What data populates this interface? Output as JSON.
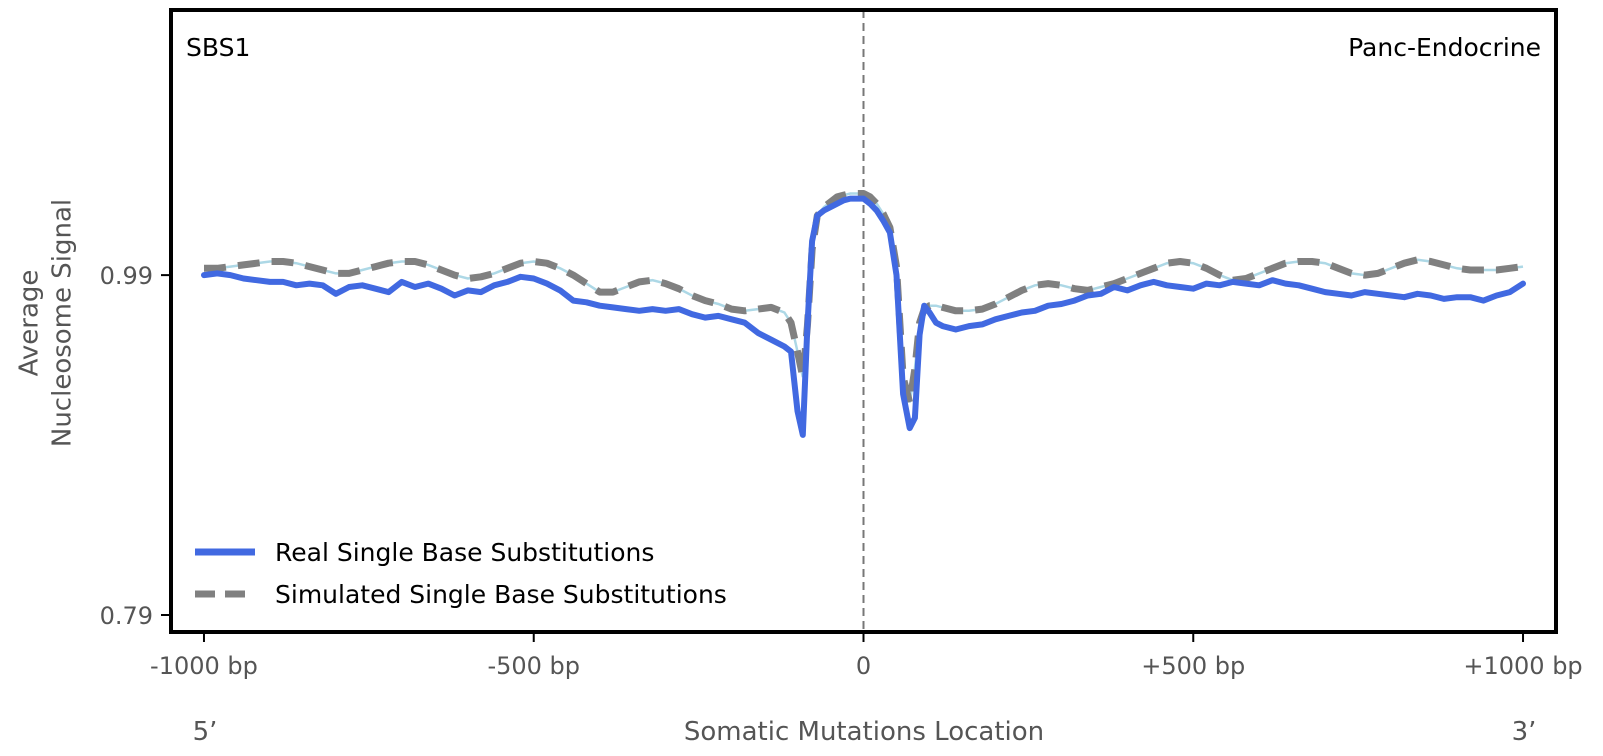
{
  "chart_data": {
    "type": "line",
    "signature_label": "SBS1",
    "tissue_label": "Panc-Endocrine",
    "xlabel": "Somatic Mutations Location",
    "ylabel_line1": "Average",
    "ylabel_line2": "Nucleosome Signal",
    "strand_left": "5’",
    "strand_right": "3’",
    "x_ticks": [
      {
        "value": -1000,
        "label": "-1000 bp"
      },
      {
        "value": -500,
        "label": "-500 bp"
      },
      {
        "value": 0,
        "label": "0"
      },
      {
        "value": 500,
        "label": "+500 bp"
      },
      {
        "value": 1000,
        "label": "+1000 bp"
      }
    ],
    "y_ticks": [
      {
        "value": 0.79,
        "label": "0.79"
      },
      {
        "value": 0.99,
        "label": "0.99"
      }
    ],
    "xlim": [
      -1050,
      1050
    ],
    "ylim": [
      0.78,
      1.146
    ],
    "center_line_x": 0,
    "legend_position": "lower-left",
    "series": [
      {
        "name": "Real Single Base Substitutions",
        "color": "#4169e1",
        "style": "solid",
        "x": [
          -1000,
          -980,
          -960,
          -940,
          -920,
          -900,
          -880,
          -860,
          -840,
          -820,
          -800,
          -780,
          -760,
          -740,
          -720,
          -700,
          -680,
          -660,
          -640,
          -620,
          -600,
          -580,
          -560,
          -540,
          -520,
          -500,
          -480,
          -460,
          -440,
          -420,
          -400,
          -380,
          -360,
          -340,
          -320,
          -300,
          -280,
          -260,
          -240,
          -220,
          -200,
          -180,
          -160,
          -140,
          -120,
          -110,
          -100,
          -92,
          -85,
          -78,
          -70,
          -60,
          -50,
          -40,
          -30,
          -20,
          -10,
          0,
          10,
          20,
          30,
          40,
          50,
          60,
          70,
          78,
          85,
          92,
          100,
          110,
          120,
          140,
          160,
          180,
          200,
          220,
          240,
          260,
          280,
          300,
          320,
          340,
          360,
          380,
          400,
          420,
          440,
          460,
          480,
          500,
          520,
          540,
          560,
          580,
          600,
          620,
          640,
          660,
          680,
          700,
          720,
          740,
          760,
          780,
          800,
          820,
          840,
          860,
          880,
          900,
          920,
          940,
          960,
          980,
          1000
        ],
        "values": [
          0.99,
          0.991,
          0.99,
          0.988,
          0.987,
          0.986,
          0.986,
          0.984,
          0.985,
          0.984,
          0.979,
          0.983,
          0.984,
          0.982,
          0.98,
          0.986,
          0.983,
          0.985,
          0.982,
          0.978,
          0.981,
          0.98,
          0.984,
          0.986,
          0.989,
          0.988,
          0.985,
          0.981,
          0.975,
          0.974,
          0.972,
          0.971,
          0.97,
          0.969,
          0.97,
          0.969,
          0.97,
          0.967,
          0.965,
          0.966,
          0.964,
          0.962,
          0.956,
          0.952,
          0.948,
          0.945,
          0.91,
          0.896,
          0.96,
          1.01,
          1.025,
          1.028,
          1.03,
          1.032,
          1.034,
          1.035,
          1.035,
          1.035,
          1.032,
          1.028,
          1.022,
          1.015,
          0.99,
          0.92,
          0.9,
          0.906,
          0.955,
          0.972,
          0.968,
          0.962,
          0.96,
          0.958,
          0.96,
          0.961,
          0.964,
          0.966,
          0.968,
          0.969,
          0.972,
          0.973,
          0.975,
          0.978,
          0.979,
          0.983,
          0.981,
          0.984,
          0.986,
          0.984,
          0.983,
          0.982,
          0.985,
          0.984,
          0.986,
          0.985,
          0.984,
          0.987,
          0.985,
          0.984,
          0.982,
          0.98,
          0.979,
          0.978,
          0.98,
          0.979,
          0.978,
          0.977,
          0.979,
          0.978,
          0.976,
          0.977,
          0.977,
          0.975,
          0.978,
          0.98,
          0.985
        ]
      },
      {
        "name": "Simulated Single Base Substitutions",
        "color": "#808080",
        "style": "dashed",
        "x": [
          -1000,
          -980,
          -960,
          -940,
          -920,
          -900,
          -880,
          -860,
          -840,
          -820,
          -800,
          -780,
          -760,
          -740,
          -720,
          -700,
          -680,
          -660,
          -640,
          -620,
          -600,
          -580,
          -560,
          -540,
          -520,
          -500,
          -480,
          -460,
          -440,
          -420,
          -400,
          -380,
          -360,
          -340,
          -320,
          -300,
          -280,
          -260,
          -240,
          -220,
          -200,
          -180,
          -160,
          -140,
          -120,
          -110,
          -100,
          -92,
          -85,
          -78,
          -70,
          -60,
          -50,
          -40,
          -30,
          -20,
          -10,
          0,
          10,
          20,
          30,
          40,
          50,
          60,
          70,
          78,
          85,
          92,
          100,
          110,
          120,
          140,
          160,
          180,
          200,
          220,
          240,
          260,
          280,
          300,
          320,
          340,
          360,
          380,
          400,
          420,
          440,
          460,
          480,
          500,
          520,
          540,
          560,
          580,
          600,
          620,
          640,
          660,
          680,
          700,
          720,
          740,
          760,
          780,
          800,
          820,
          840,
          860,
          880,
          900,
          920,
          940,
          960,
          980,
          1000
        ],
        "values": [
          0.994,
          0.994,
          0.995,
          0.996,
          0.997,
          0.998,
          0.998,
          0.997,
          0.995,
          0.993,
          0.991,
          0.991,
          0.993,
          0.995,
          0.997,
          0.998,
          0.998,
          0.996,
          0.993,
          0.99,
          0.988,
          0.989,
          0.991,
          0.994,
          0.997,
          0.998,
          0.997,
          0.994,
          0.99,
          0.985,
          0.98,
          0.98,
          0.983,
          0.986,
          0.987,
          0.985,
          0.982,
          0.978,
          0.975,
          0.973,
          0.97,
          0.969,
          0.97,
          0.971,
          0.968,
          0.962,
          0.945,
          0.93,
          0.96,
          1.005,
          1.025,
          1.03,
          1.033,
          1.036,
          1.037,
          1.038,
          1.038,
          1.038,
          1.036,
          1.032,
          1.026,
          1.018,
          0.995,
          0.93,
          0.915,
          0.935,
          0.962,
          0.97,
          0.972,
          0.972,
          0.971,
          0.969,
          0.969,
          0.97,
          0.973,
          0.977,
          0.981,
          0.984,
          0.985,
          0.984,
          0.982,
          0.981,
          0.983,
          0.985,
          0.988,
          0.991,
          0.994,
          0.997,
          0.998,
          0.997,
          0.994,
          0.99,
          0.987,
          0.988,
          0.991,
          0.994,
          0.997,
          0.998,
          0.998,
          0.997,
          0.994,
          0.991,
          0.99,
          0.991,
          0.994,
          0.997,
          0.999,
          0.998,
          0.996,
          0.994,
          0.993,
          0.993,
          0.993,
          0.994,
          0.995
        ]
      }
    ]
  }
}
